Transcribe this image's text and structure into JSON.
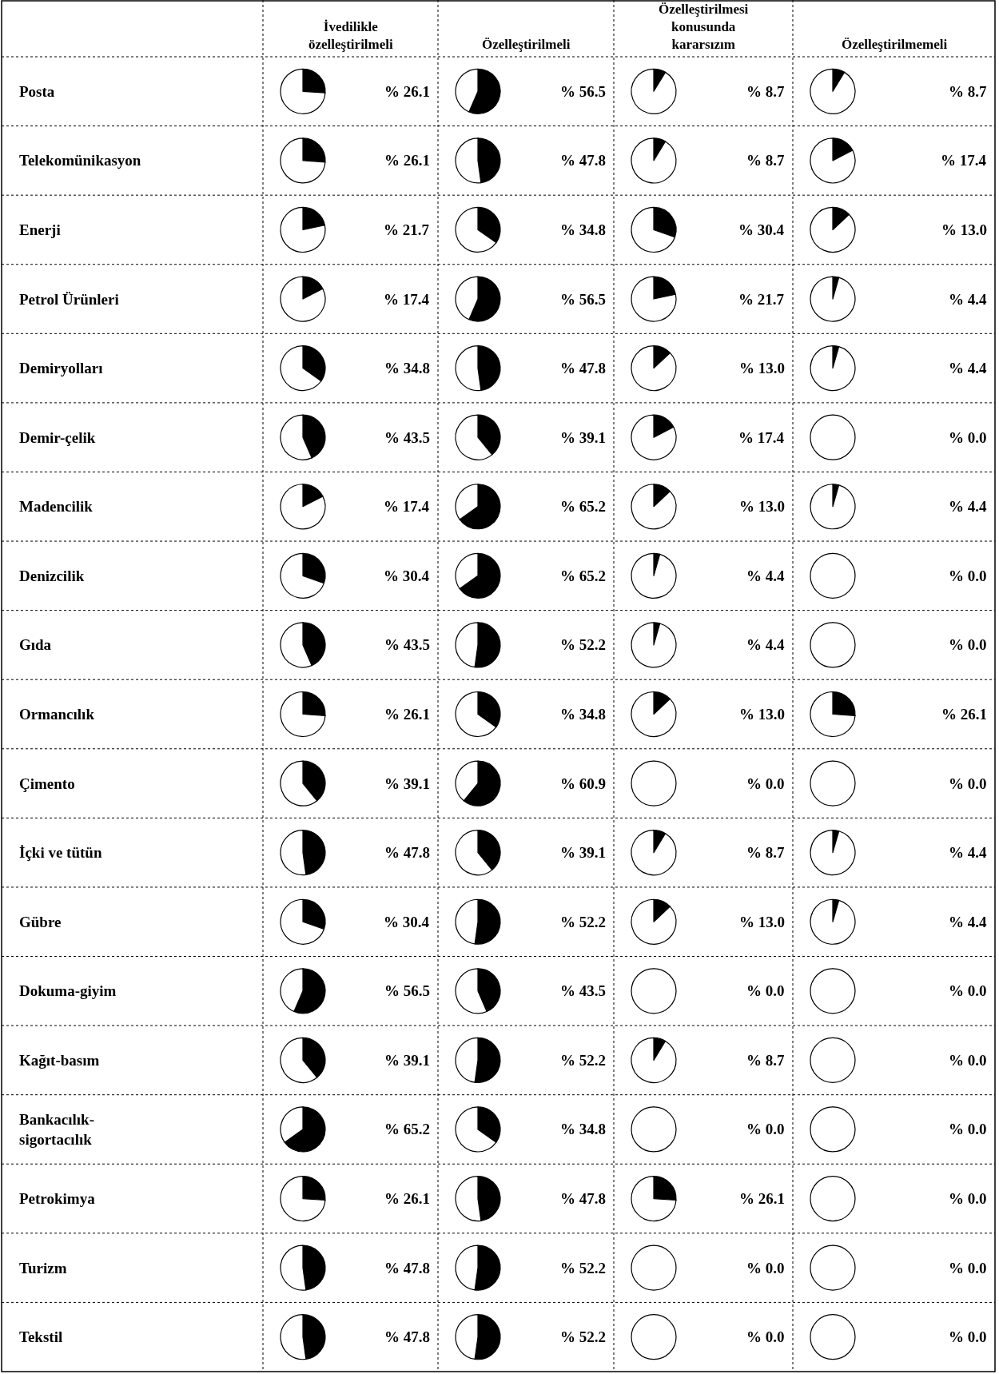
{
  "chart_data": {
    "type": "heatmap",
    "categories": [
      "İvedilikle\nözelleştirilmeli",
      "Özelleştirilmeli",
      "Özelleştirilmesi\nkonusunda\nkararsızım",
      "Özelleştirilmemeli"
    ],
    "y_categories": [
      "Posta",
      "Telekomünikasyon",
      "Enerji",
      "Petrol Ürünleri",
      "Demiryolları",
      "Demir-çelik",
      "Madencilik",
      "Denizcilik",
      "Gıda",
      "Ormancılık",
      "Çimento",
      "İçki ve tütün",
      "Gübre",
      "Dokuma-giyim",
      "Kağıt-basım",
      "Bankacılık-\nsigortacılık",
      "Petrokimya",
      "Turizm",
      "Tekstil"
    ],
    "colors": [
      "#000000",
      "#ffffff"
    ],
    "cells": [
      [
        26.1,
        56.5,
        8.7,
        8.7
      ],
      [
        26.1,
        47.8,
        8.7,
        17.4
      ],
      [
        21.7,
        34.8,
        30.4,
        13.0
      ],
      [
        17.4,
        56.5,
        21.7,
        4.4
      ],
      [
        34.8,
        47.8,
        13.0,
        4.4
      ],
      [
        43.5,
        39.1,
        17.4,
        0.0
      ],
      [
        17.4,
        65.2,
        13.0,
        4.4
      ],
      [
        30.4,
        65.2,
        4.4,
        0.0
      ],
      [
        43.5,
        52.2,
        4.4,
        0.0
      ],
      [
        26.1,
        34.8,
        13.0,
        26.1
      ],
      [
        39.1,
        60.9,
        0.0,
        0.0
      ],
      [
        47.8,
        39.1,
        8.7,
        4.4
      ],
      [
        30.4,
        52.2,
        13.0,
        4.4
      ],
      [
        56.5,
        43.5,
        0.0,
        0.0
      ],
      [
        39.1,
        52.2,
        8.7,
        0.0
      ],
      [
        65.2,
        34.8,
        0.0,
        0.0
      ],
      [
        26.1,
        47.8,
        26.1,
        0.0
      ],
      [
        47.8,
        52.2,
        0.0,
        0.0
      ],
      [
        47.8,
        52.2,
        0.0,
        0.0
      ]
    ],
    "cell_labels": [
      [
        "% 26.1",
        "% 56.5",
        "% 8.7",
        "% 8.7"
      ],
      [
        "% 26.1",
        "% 47.8",
        "% 8.7",
        "% 17.4"
      ],
      [
        "% 21.7",
        "% 34.8",
        "% 30.4",
        "% 13.0"
      ],
      [
        "% 17.4",
        "% 56.5",
        "% 21.7",
        "% 4.4"
      ],
      [
        "% 34.8",
        "% 47.8",
        "% 13.0",
        "% 4.4"
      ],
      [
        "% 43.5",
        "% 39.1",
        "% 17.4",
        "% 0.0"
      ],
      [
        "% 17.4",
        "% 65.2",
        "% 13.0",
        "% 4.4"
      ],
      [
        "% 30.4",
        "% 65.2",
        "% 4.4",
        "% 0.0"
      ],
      [
        "% 43.5",
        "% 52.2",
        "% 4.4",
        "% 0.0"
      ],
      [
        "% 26.1",
        "% 34.8",
        "% 13.0",
        "% 26.1"
      ],
      [
        "% 39.1",
        "% 60.9",
        "% 0.0",
        "% 0.0"
      ],
      [
        "% 47.8",
        "% 39.1",
        "% 8.7",
        "% 4.4"
      ],
      [
        "% 30.4",
        "% 52.2",
        "% 13.0",
        "% 4.4"
      ],
      [
        "% 56.5",
        "% 43.5",
        "% 0.0",
        "% 0.0"
      ],
      [
        "% 39.1",
        "% 52.2",
        "% 8.7",
        "% 0.0"
      ],
      [
        "% 65.2",
        "% 34.8",
        "% 0.0",
        "% 0.0"
      ],
      [
        "% 26.1",
        "% 47.8",
        "% 26.1",
        "% 0.0"
      ],
      [
        "% 47.8",
        "% 52.2",
        "% 0.0",
        "% 0.0"
      ],
      [
        "% 47.8",
        "% 52.2",
        "% 0.0",
        "% 0.0"
      ]
    ]
  }
}
